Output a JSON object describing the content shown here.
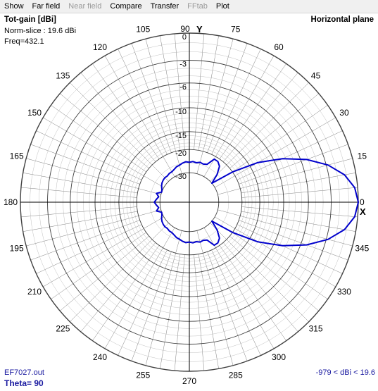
{
  "menu": {
    "items": [
      {
        "label": "Show",
        "enabled": true
      },
      {
        "label": "Far field",
        "enabled": true
      },
      {
        "label": "Near field",
        "enabled": false
      },
      {
        "label": "Compare",
        "enabled": true
      },
      {
        "label": "Transfer",
        "enabled": true
      },
      {
        "label": "FFtab",
        "enabled": false
      },
      {
        "label": "Plot",
        "enabled": true
      }
    ]
  },
  "plot": {
    "title": "Tot-gain [dBi]",
    "norm_slice": "Norm-slice : 19.6 dBi",
    "frequency": "Freq=432.1",
    "plane": "Horizontal plane",
    "file": "EF7027.out",
    "theta": "Theta= 90",
    "range": "-979 < dBi < 19.6",
    "y_axis_label": "Y",
    "x_axis_label": "X"
  },
  "chart_data": {
    "type": "polar",
    "angle_ticks": [
      "0",
      "15",
      "30",
      "45",
      "60",
      "75",
      "90",
      "105",
      "120",
      "135",
      "150",
      "165",
      "180",
      "195",
      "210",
      "225",
      "240",
      "255",
      "270",
      "285",
      "300",
      "315",
      "330",
      "345"
    ],
    "radial_ticks": [
      0,
      -3,
      -6,
      -10,
      -15,
      -20,
      -30
    ],
    "radial_tick_labels": [
      "0",
      "-3",
      "-6",
      "-10",
      "-15",
      "-20",
      "-30"
    ],
    "trace_color": "#0000cc",
    "grid_color": "#808080",
    "series": [
      {
        "points": [
          [
            0,
            0
          ],
          [
            5,
            -0.3
          ],
          [
            10,
            -1.2
          ],
          [
            15,
            -2.8
          ],
          [
            20,
            -5.2
          ],
          [
            25,
            -8.5
          ],
          [
            30,
            -13
          ],
          [
            35,
            -20
          ],
          [
            40,
            -30
          ],
          [
            45,
            -25
          ],
          [
            50,
            -22
          ],
          [
            55,
            -21
          ],
          [
            60,
            -21
          ],
          [
            65,
            -24
          ],
          [
            70,
            -24.5
          ],
          [
            75,
            -24.2
          ],
          [
            80,
            -24.7
          ],
          [
            85,
            -24.4
          ],
          [
            90,
            -24.8
          ],
          [
            95,
            -24.5
          ],
          [
            100,
            -24.9
          ],
          [
            105,
            -25.5
          ],
          [
            110,
            -25.8
          ],
          [
            115,
            -26.5
          ],
          [
            120,
            -27
          ],
          [
            125,
            -27
          ],
          [
            130,
            -27.4
          ],
          [
            135,
            -27.2
          ],
          [
            140,
            -27.4
          ],
          [
            145,
            -27.8
          ],
          [
            150,
            -28.5
          ],
          [
            155,
            -29.5
          ],
          [
            160,
            -30
          ],
          [
            165,
            -27.5
          ],
          [
            170,
            -29
          ],
          [
            175,
            -28
          ],
          [
            180,
            -27
          ],
          [
            185,
            -28
          ],
          [
            190,
            -29
          ],
          [
            195,
            -27.5
          ],
          [
            200,
            -30
          ],
          [
            205,
            -29.5
          ],
          [
            210,
            -28.5
          ],
          [
            215,
            -27.8
          ],
          [
            220,
            -27.4
          ],
          [
            225,
            -27.2
          ],
          [
            230,
            -27.4
          ],
          [
            235,
            -27
          ],
          [
            240,
            -27
          ],
          [
            245,
            -26.5
          ],
          [
            250,
            -25.8
          ],
          [
            255,
            -25.5
          ],
          [
            260,
            -24.9
          ],
          [
            265,
            -24.5
          ],
          [
            270,
            -24.8
          ],
          [
            275,
            -24.4
          ],
          [
            280,
            -24.7
          ],
          [
            285,
            -24.2
          ],
          [
            290,
            -24.5
          ],
          [
            295,
            -24
          ],
          [
            300,
            -21
          ],
          [
            305,
            -21
          ],
          [
            310,
            -22
          ],
          [
            315,
            -25
          ],
          [
            320,
            -30
          ],
          [
            325,
            -20
          ],
          [
            330,
            -13
          ],
          [
            335,
            -8.5
          ],
          [
            340,
            -5.2
          ],
          [
            345,
            -2.8
          ],
          [
            350,
            -1.2
          ],
          [
            355,
            -0.3
          ],
          [
            360,
            0
          ]
        ]
      }
    ]
  }
}
